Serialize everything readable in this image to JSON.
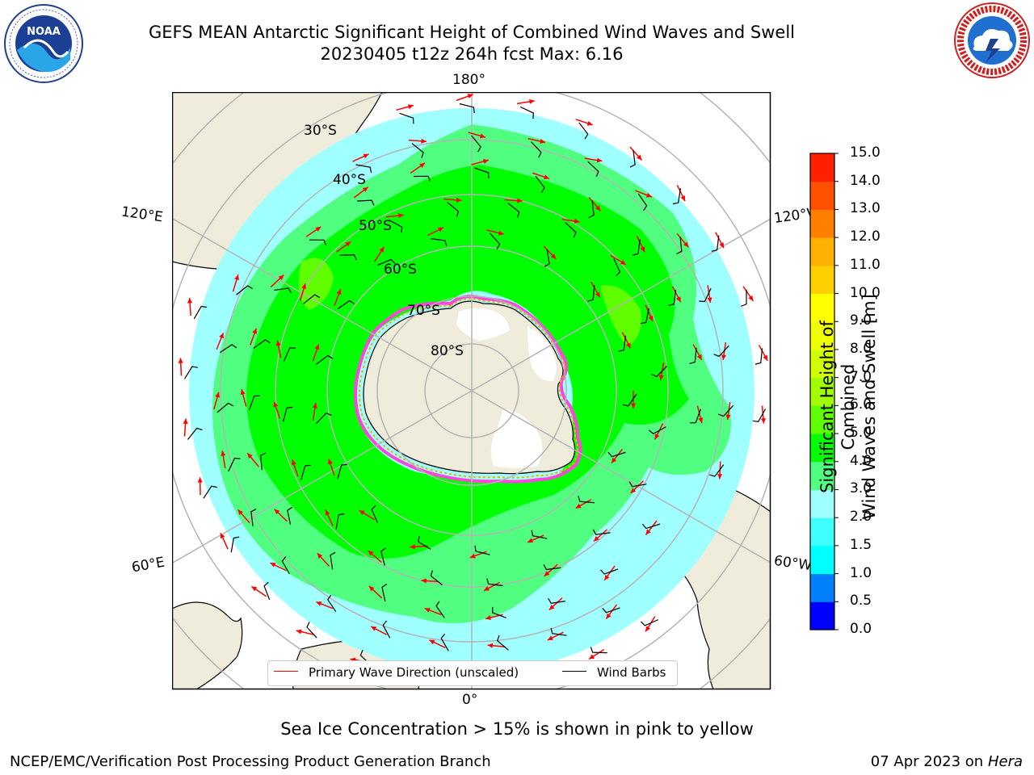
{
  "title": {
    "line1": "GEFS MEAN Antarctic Significant Height of Combined Wind Waves and Swell",
    "line2": "20230405 t12z 264h fcst   Max: 6.16"
  },
  "logos": {
    "left": "NOAA",
    "left_ring_text": "NATIONAL OCEANIC AND ATMOSPHERIC ADMINISTRATION · U.S. DEPARTMENT OF COMMERCE",
    "right_ring_text": "NATIONAL WEATHER SERVICE"
  },
  "map": {
    "projection": "south-polar-stereographic",
    "longitude_labels": {
      "top": "180°",
      "bottom": "0°",
      "upper_left": "120°E",
      "lower_left": "60°E",
      "upper_right": "120°W",
      "lower_right": "60°W"
    },
    "latitude_labels": [
      "30°S",
      "40°S",
      "50°S",
      "60°S",
      "70°S",
      "80°S"
    ],
    "colors": {
      "land": "#efecdc",
      "ice_shelf": "#ffffff",
      "grid": "#b4b4b4",
      "sea_ice_edge": [
        "#ff44dd",
        "#ffaa00"
      ],
      "wave_arrow": "#ff0000",
      "wind_barb": "#000000"
    }
  },
  "legend": {
    "items": [
      {
        "label": "Primary Wave Direction (unscaled)",
        "color": "#ff0000"
      },
      {
        "label": "Wind Barbs",
        "color": "#000000"
      }
    ]
  },
  "colorbar": {
    "label_line1": "Significant Height of Combined",
    "label_line2": "Wind Waves and Swell [m]",
    "ticks": [
      "0.0",
      "0.5",
      "1.0",
      "1.5",
      "2.0",
      "3.0",
      "4.0",
      "5.0",
      "6.0",
      "7.0",
      "8.0",
      "9.0",
      "10.0",
      "11.0",
      "12.0",
      "13.0",
      "14.0",
      "15.0"
    ],
    "colors": [
      "#0000ff",
      "#0080ff",
      "#00ffff",
      "#40ffff",
      "#a0ffff",
      "#50ff80",
      "#00ff00",
      "#60ff00",
      "#a0ff00",
      "#d0ff00",
      "#f0ff00",
      "#ffff00",
      "#ffd000",
      "#ffb000",
      "#ff8000",
      "#ff5000",
      "#ff2000"
    ]
  },
  "caption": "Sea Ice Concentration > 15% is shown in pink to yellow",
  "footer": {
    "left": "NCEP/EMC/Verification Post Processing Product Generation Branch",
    "right_date": "07 Apr 2023 on ",
    "right_host": "Hera"
  }
}
